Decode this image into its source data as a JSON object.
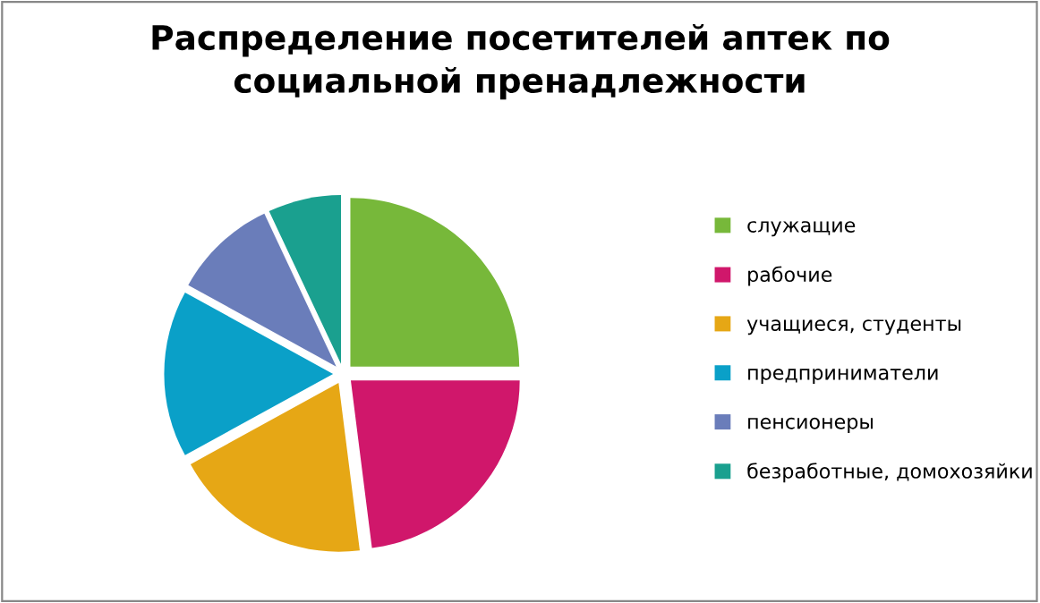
{
  "chart_data": {
    "type": "pie",
    "title": "Распределение посетителей аптек по\nсоциальной пренадлежности",
    "categories": [
      "служащие",
      "рабочие",
      "учащиеся, студенты",
      "предприниматели",
      "пенсионеры",
      "безработные, домохозяйки"
    ],
    "values": [
      25,
      23,
      19,
      16,
      10,
      7
    ],
    "colors": [
      "#77b83a",
      "#d0176b",
      "#e6a715",
      "#0aa0c8",
      "#6a7dba",
      "#1aa08f"
    ],
    "legend": "right"
  }
}
